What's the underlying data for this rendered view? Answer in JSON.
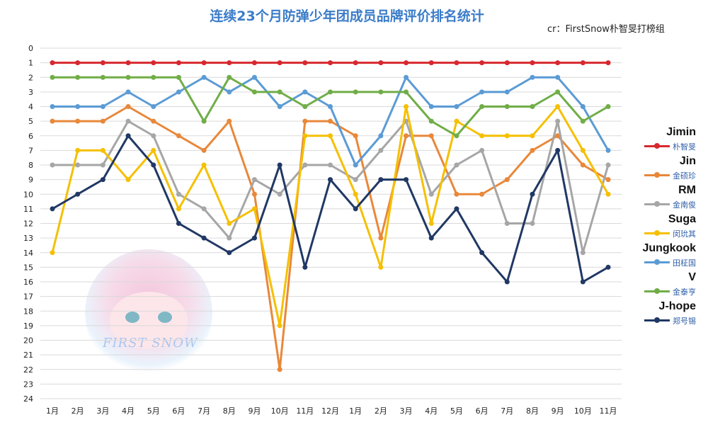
{
  "title": "连续23个月防弹少年团成员品牌评价排名统计",
  "credit": "cr：FirstSnow朴智旻打榜组",
  "watermark_text": "FIRST SNOW",
  "chart_data": {
    "type": "line",
    "title": "连续23个月防弹少年团成员品牌评价排名统计",
    "categories": [
      "1月",
      "2月",
      "3月",
      "4月",
      "5月",
      "6月",
      "7月",
      "8月",
      "9月",
      "10月",
      "11月",
      "12月",
      "1月",
      "2月",
      "3月",
      "4月",
      "5月",
      "6月",
      "7月",
      "8月",
      "9月",
      "10月",
      "11月"
    ],
    "y_ticks": [
      "0",
      "1",
      "2",
      "3",
      "4",
      "5",
      "6",
      "7",
      "8",
      "9",
      "10",
      "11",
      "12",
      "13",
      "14",
      "15",
      "16",
      "17",
      "18",
      "19",
      "20",
      "21",
      "22",
      "23",
      "24"
    ],
    "ylim": [
      0,
      24
    ],
    "y_inverted": true,
    "grid": true,
    "legend_position": "right",
    "series": [
      {
        "name": "Jimin",
        "label_cn": "朴智旻",
        "color": "#d7282f",
        "values": [
          1,
          1,
          1,
          1,
          1,
          1,
          1,
          1,
          1,
          1,
          1,
          1,
          1,
          1,
          1,
          1,
          1,
          1,
          1,
          1,
          1,
          1,
          1
        ]
      },
      {
        "name": "Jin",
        "label_cn": "金硕珍",
        "color": "#e8883a",
        "values": [
          5,
          5,
          5,
          4,
          5,
          6,
          7,
          5,
          10,
          22,
          5,
          5,
          6,
          13,
          6,
          6,
          10,
          10,
          9,
          7,
          6,
          8,
          9
        ]
      },
      {
        "name": "RM",
        "label_cn": "金南俊",
        "color": "#a6a6a6",
        "values": [
          8,
          8,
          8,
          5,
          6,
          10,
          11,
          13,
          9,
          10,
          8,
          8,
          9,
          7,
          5,
          10,
          8,
          7,
          12,
          12,
          5,
          14,
          8
        ]
      },
      {
        "name": "Suga",
        "label_cn": "闵玧其",
        "color": "#f5c000",
        "values": [
          14,
          7,
          7,
          9,
          7,
          11,
          8,
          12,
          11,
          19,
          6,
          6,
          10,
          15,
          4,
          12,
          5,
          6,
          6,
          6,
          4,
          7,
          10
        ]
      },
      {
        "name": "Jungkook",
        "label_cn": "田柾国",
        "color": "#5b9bd5",
        "values": [
          4,
          4,
          4,
          3,
          4,
          3,
          2,
          3,
          2,
          4,
          3,
          4,
          8,
          6,
          2,
          4,
          4,
          3,
          3,
          2,
          2,
          4,
          7
        ]
      },
      {
        "name": "V",
        "label_cn": "金泰亨",
        "color": "#70ad47",
        "values": [
          2,
          2,
          2,
          2,
          2,
          2,
          5,
          2,
          3,
          3,
          4,
          3,
          3,
          3,
          3,
          5,
          6,
          4,
          4,
          4,
          3,
          5,
          4
        ]
      },
      {
        "name": "J-hope",
        "label_cn": "郑号锡",
        "color": "#203864",
        "values": [
          11,
          10,
          9,
          6,
          8,
          12,
          13,
          14,
          13,
          8,
          15,
          9,
          11,
          9,
          9,
          13,
          11,
          14,
          16,
          10,
          7,
          16,
          15
        ]
      }
    ]
  }
}
